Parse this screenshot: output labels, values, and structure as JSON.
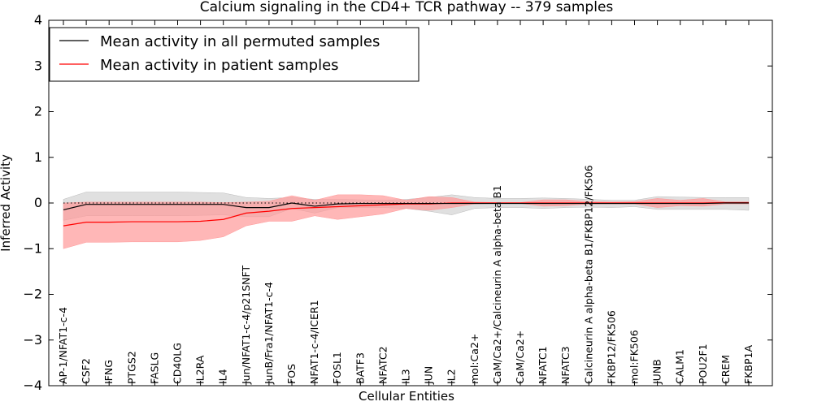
{
  "chart_data": {
    "type": "line",
    "title": "Calcium signaling in the CD4+ TCR pathway -- 379 samples",
    "xlabel": "Cellular Entities",
    "ylabel": "Inferred Activity",
    "ylim": [
      -4,
      4
    ],
    "yticks": [
      -4,
      -3,
      -2,
      -1,
      0,
      1,
      2,
      3,
      4
    ],
    "categories": [
      "AP-1/NFAT1-c-4",
      "CSF2",
      "IFNG",
      "PTGS2",
      "FASLG",
      "CD40LG",
      "IL2RA",
      "IL4",
      "Jun/NFAT1-c-4/p21SNFT",
      "JunB/Fra1/NFAT1-c-4",
      "FOS",
      "NFAT1-c-4/ICER1",
      "FOSL1",
      "BATF3",
      "NFATC2",
      "IL3",
      "JUN",
      "IL2",
      "mol:Ca2+",
      "CaM/Ca2+/Calcineurin A alpha-beta B1",
      "CaM/Ca2+",
      "NFATC1",
      "NFATC3",
      "Calcineurin A alpha-beta B1/FKBP12/FK506",
      "FKBP12/FK506",
      "mol:FK506",
      "JUNB",
      "CALM1",
      "POU2F1",
      "CREM",
      "FKBP1A"
    ],
    "legend_position": "top-left",
    "series": [
      {
        "name": "Mean activity in all permuted samples",
        "color": "#000000",
        "band_color": "#bbbbbb",
        "values": [
          -0.15,
          -0.03,
          -0.03,
          -0.03,
          -0.03,
          -0.03,
          -0.03,
          -0.03,
          -0.1,
          -0.1,
          0.0,
          -0.07,
          -0.02,
          -0.01,
          -0.01,
          -0.01,
          -0.01,
          -0.01,
          -0.01,
          -0.01,
          -0.01,
          -0.01,
          -0.01,
          -0.01,
          -0.01,
          -0.01,
          -0.01,
          -0.01,
          -0.01,
          0.0,
          0.0
        ],
        "upper": [
          0.08,
          0.24,
          0.24,
          0.24,
          0.24,
          0.24,
          0.23,
          0.22,
          0.12,
          0.1,
          0.12,
          0.08,
          0.08,
          0.07,
          0.06,
          0.08,
          0.12,
          0.18,
          0.12,
          0.1,
          0.1,
          0.11,
          0.1,
          0.08,
          0.06,
          0.06,
          0.14,
          0.13,
          0.12,
          0.12,
          0.12
        ],
        "lower": [
          -0.38,
          -0.28,
          -0.28,
          -0.28,
          -0.28,
          -0.28,
          -0.27,
          -0.26,
          -0.3,
          -0.3,
          -0.12,
          -0.22,
          -0.1,
          -0.1,
          -0.1,
          -0.12,
          -0.18,
          -0.26,
          -0.12,
          -0.1,
          -0.1,
          -0.12,
          -0.1,
          -0.09,
          -0.1,
          -0.08,
          -0.14,
          -0.14,
          -0.14,
          -0.14,
          -0.16
        ]
      },
      {
        "name": "Mean activity in patient samples",
        "color": "#ff0000",
        "band_color": "#ff9999",
        "values": [
          -0.5,
          -0.42,
          -0.42,
          -0.41,
          -0.41,
          -0.41,
          -0.4,
          -0.36,
          -0.22,
          -0.18,
          -0.12,
          -0.1,
          -0.08,
          -0.06,
          -0.04,
          -0.02,
          -0.02,
          0.0,
          0.0,
          0.0,
          0.0,
          0.0,
          0.0,
          0.0,
          0.0,
          0.0,
          0.0,
          0.0,
          0.0,
          0.01,
          0.01
        ],
        "upper": [
          0.0,
          0.02,
          0.02,
          0.02,
          0.02,
          0.02,
          0.02,
          0.01,
          0.02,
          0.04,
          0.16,
          0.06,
          0.18,
          0.18,
          0.16,
          0.06,
          0.14,
          0.12,
          0.02,
          0.01,
          0.01,
          0.07,
          0.07,
          0.03,
          0.02,
          0.03,
          0.1,
          0.06,
          0.1,
          0.02,
          0.02
        ],
        "lower": [
          -1.0,
          -0.86,
          -0.86,
          -0.85,
          -0.85,
          -0.85,
          -0.82,
          -0.74,
          -0.5,
          -0.4,
          -0.4,
          -0.28,
          -0.36,
          -0.3,
          -0.24,
          -0.12,
          -0.16,
          -0.1,
          -0.02,
          -0.01,
          -0.01,
          -0.07,
          -0.06,
          -0.02,
          -0.02,
          -0.02,
          -0.1,
          -0.06,
          -0.07,
          -0.02,
          -0.02
        ]
      }
    ],
    "reference_line": {
      "value": 0,
      "style": "dotted",
      "color": "#000000"
    }
  }
}
